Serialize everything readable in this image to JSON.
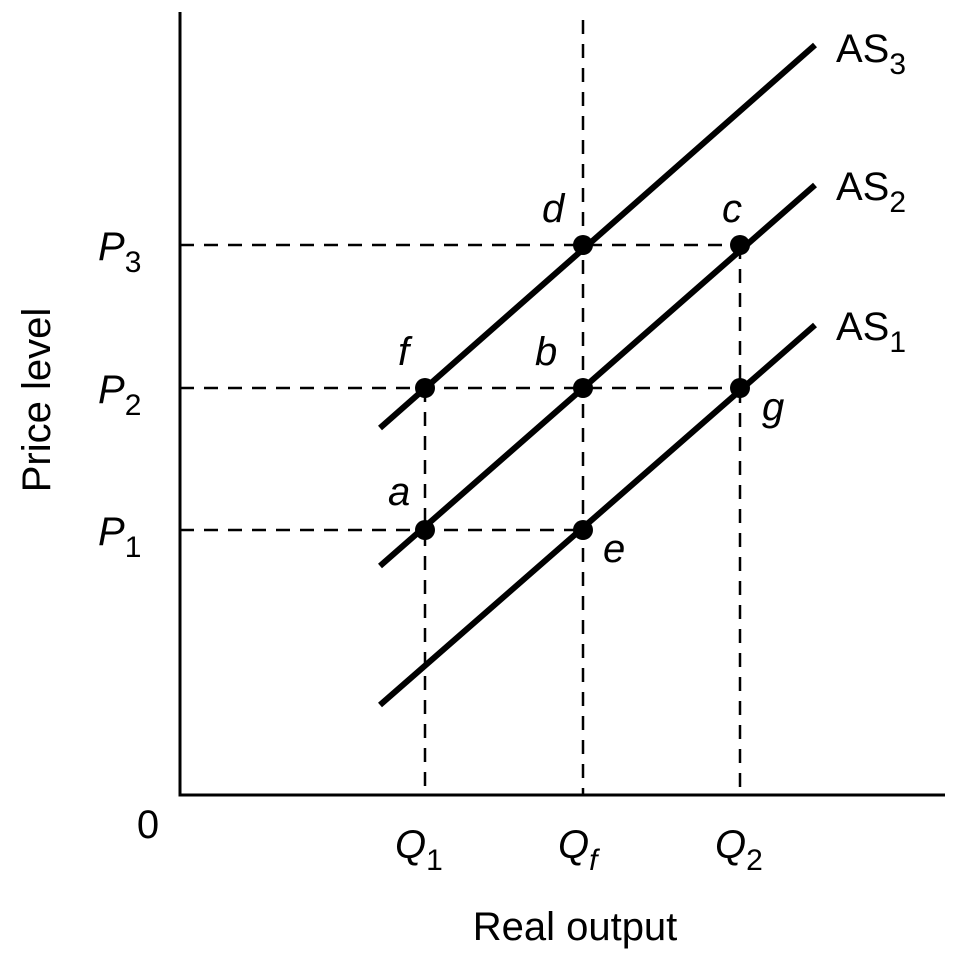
{
  "axes": {
    "y_label": "Price level",
    "x_label": "Real output",
    "origin": "0",
    "y_ticks": [
      {
        "base": "P",
        "sub": "3"
      },
      {
        "base": "P",
        "sub": "2"
      },
      {
        "base": "P",
        "sub": "1"
      }
    ],
    "x_ticks": [
      {
        "base": "Q",
        "sub": "1"
      },
      {
        "base": "Q",
        "sub": "f"
      },
      {
        "base": "Q",
        "sub": "2"
      }
    ]
  },
  "curves": [
    {
      "base": "AS",
      "sub": "3"
    },
    {
      "base": "AS",
      "sub": "2"
    },
    {
      "base": "AS",
      "sub": "1"
    }
  ],
  "points": [
    "a",
    "b",
    "c",
    "d",
    "e",
    "f",
    "g"
  ]
}
